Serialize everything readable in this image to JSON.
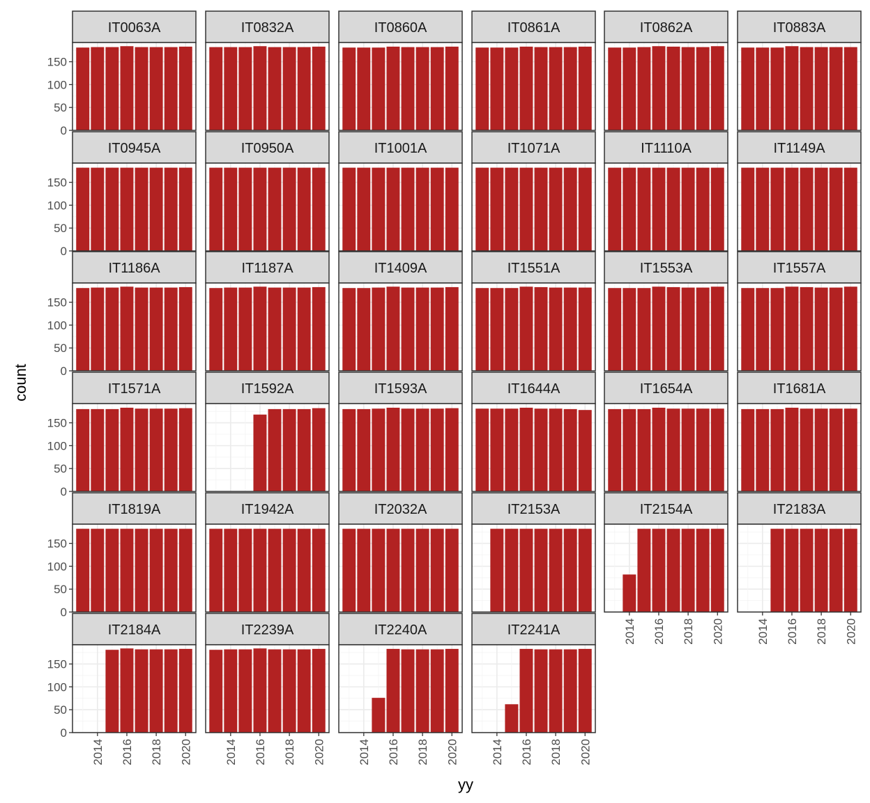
{
  "chart_data": {
    "type": "bar",
    "facet_layout": "6 columns, wrap",
    "xlabel": "yy",
    "ylabel": "count",
    "x_ticks": [
      2014,
      2016,
      2018,
      2020
    ],
    "y_ticks": [
      0,
      50,
      100,
      150
    ],
    "xlim": [
      2012.3,
      2020.7
    ],
    "ylim": [
      0,
      192
    ],
    "bar_color": "#B22222",
    "strip_fill": "#D9D9D9",
    "grid": true,
    "panels": [
      {
        "name": "IT0063A",
        "x": [
          2013,
          2014,
          2015,
          2016,
          2017,
          2018,
          2019,
          2020
        ],
        "values": [
          181,
          182,
          182,
          184,
          182,
          182,
          182,
          183
        ]
      },
      {
        "name": "IT0832A",
        "x": [
          2013,
          2014,
          2015,
          2016,
          2017,
          2018,
          2019,
          2020
        ],
        "values": [
          182,
          182,
          182,
          184,
          182,
          182,
          182,
          183
        ]
      },
      {
        "name": "IT0860A",
        "x": [
          2013,
          2014,
          2015,
          2016,
          2017,
          2018,
          2019,
          2020
        ],
        "values": [
          181,
          181,
          181,
          183,
          182,
          182,
          182,
          183
        ]
      },
      {
        "name": "IT0861A",
        "x": [
          2013,
          2014,
          2015,
          2016,
          2017,
          2018,
          2019,
          2020
        ],
        "values": [
          181,
          181,
          181,
          183,
          182,
          182,
          182,
          183
        ]
      },
      {
        "name": "IT0862A",
        "x": [
          2013,
          2014,
          2015,
          2016,
          2017,
          2018,
          2019,
          2020
        ],
        "values": [
          181,
          181,
          182,
          184,
          183,
          182,
          182,
          184
        ]
      },
      {
        "name": "IT0883A",
        "x": [
          2013,
          2014,
          2015,
          2016,
          2017,
          2018,
          2019,
          2020
        ],
        "values": [
          181,
          181,
          181,
          184,
          182,
          182,
          182,
          182
        ]
      },
      {
        "name": "IT0945A",
        "x": [
          2013,
          2014,
          2015,
          2016,
          2017,
          2018,
          2019,
          2020
        ],
        "values": [
          182,
          182,
          182,
          182,
          182,
          182,
          182,
          182
        ]
      },
      {
        "name": "IT0950A",
        "x": [
          2013,
          2014,
          2015,
          2016,
          2017,
          2018,
          2019,
          2020
        ],
        "values": [
          182,
          182,
          182,
          182,
          182,
          182,
          182,
          182
        ]
      },
      {
        "name": "IT1001A",
        "x": [
          2013,
          2014,
          2015,
          2016,
          2017,
          2018,
          2019,
          2020
        ],
        "values": [
          182,
          182,
          182,
          182,
          182,
          182,
          182,
          182
        ]
      },
      {
        "name": "IT1071A",
        "x": [
          2013,
          2014,
          2015,
          2016,
          2017,
          2018,
          2019,
          2020
        ],
        "values": [
          182,
          182,
          182,
          182,
          182,
          182,
          182,
          182
        ]
      },
      {
        "name": "IT1110A",
        "x": [
          2013,
          2014,
          2015,
          2016,
          2017,
          2018,
          2019,
          2020
        ],
        "values": [
          182,
          182,
          182,
          182,
          182,
          182,
          182,
          182
        ]
      },
      {
        "name": "IT1149A",
        "x": [
          2013,
          2014,
          2015,
          2016,
          2017,
          2018,
          2019,
          2020
        ],
        "values": [
          182,
          182,
          182,
          182,
          182,
          182,
          182,
          182
        ]
      },
      {
        "name": "IT1186A",
        "x": [
          2013,
          2014,
          2015,
          2016,
          2017,
          2018,
          2019,
          2020
        ],
        "values": [
          181,
          182,
          182,
          184,
          182,
          182,
          182,
          183
        ]
      },
      {
        "name": "IT1187A",
        "x": [
          2013,
          2014,
          2015,
          2016,
          2017,
          2018,
          2019,
          2020
        ],
        "values": [
          181,
          182,
          182,
          184,
          182,
          182,
          182,
          183
        ]
      },
      {
        "name": "IT1409A",
        "x": [
          2013,
          2014,
          2015,
          2016,
          2017,
          2018,
          2019,
          2020
        ],
        "values": [
          181,
          181,
          182,
          184,
          182,
          182,
          182,
          183
        ]
      },
      {
        "name": "IT1551A",
        "x": [
          2013,
          2014,
          2015,
          2016,
          2017,
          2018,
          2019,
          2020
        ],
        "values": [
          181,
          181,
          181,
          184,
          183,
          182,
          182,
          182
        ]
      },
      {
        "name": "IT1553A",
        "x": [
          2013,
          2014,
          2015,
          2016,
          2017,
          2018,
          2019,
          2020
        ],
        "values": [
          181,
          181,
          181,
          184,
          183,
          182,
          182,
          184
        ]
      },
      {
        "name": "IT1557A",
        "x": [
          2013,
          2014,
          2015,
          2016,
          2017,
          2018,
          2019,
          2020
        ],
        "values": [
          181,
          181,
          181,
          184,
          183,
          182,
          182,
          184
        ]
      },
      {
        "name": "IT1571A",
        "x": [
          2013,
          2014,
          2015,
          2016,
          2017,
          2018,
          2019,
          2020
        ],
        "values": [
          180,
          180,
          180,
          183,
          181,
          181,
          181,
          182
        ]
      },
      {
        "name": "IT1592A",
        "x": [
          2016,
          2017,
          2018,
          2019,
          2020
        ],
        "values": [
          168,
          180,
          180,
          180,
          182
        ]
      },
      {
        "name": "IT1593A",
        "x": [
          2013,
          2014,
          2015,
          2016,
          2017,
          2018,
          2019,
          2020
        ],
        "values": [
          180,
          180,
          181,
          183,
          181,
          181,
          181,
          182
        ]
      },
      {
        "name": "IT1644A",
        "x": [
          2013,
          2014,
          2015,
          2016,
          2017,
          2018,
          2019,
          2020
        ],
        "values": [
          181,
          181,
          181,
          183,
          181,
          181,
          180,
          178
        ]
      },
      {
        "name": "IT1654A",
        "x": [
          2013,
          2014,
          2015,
          2016,
          2017,
          2018,
          2019,
          2020
        ],
        "values": [
          180,
          180,
          180,
          183,
          181,
          181,
          181,
          181
        ]
      },
      {
        "name": "IT1681A",
        "x": [
          2013,
          2014,
          2015,
          2016,
          2017,
          2018,
          2019,
          2020
        ],
        "values": [
          180,
          180,
          180,
          183,
          181,
          181,
          181,
          181
        ]
      },
      {
        "name": "IT1819A",
        "x": [
          2013,
          2014,
          2015,
          2016,
          2017,
          2018,
          2019,
          2020
        ],
        "values": [
          182,
          182,
          182,
          182,
          182,
          182,
          182,
          182
        ]
      },
      {
        "name": "IT1942A",
        "x": [
          2013,
          2014,
          2015,
          2016,
          2017,
          2018,
          2019,
          2020
        ],
        "values": [
          182,
          182,
          182,
          182,
          182,
          182,
          182,
          182
        ]
      },
      {
        "name": "IT2032A",
        "x": [
          2013,
          2014,
          2015,
          2016,
          2017,
          2018,
          2019,
          2020
        ],
        "values": [
          182,
          182,
          182,
          182,
          182,
          182,
          182,
          182
        ]
      },
      {
        "name": "IT2153A",
        "x": [
          2014,
          2015,
          2016,
          2017,
          2018,
          2019,
          2020
        ],
        "values": [
          182,
          182,
          182,
          182,
          182,
          182,
          182
        ]
      },
      {
        "name": "IT2154A",
        "x": [
          2014,
          2015,
          2016,
          2017,
          2018,
          2019,
          2020
        ],
        "values": [
          82,
          182,
          182,
          182,
          182,
          182,
          182
        ]
      },
      {
        "name": "IT2183A",
        "x": [
          2015,
          2016,
          2017,
          2018,
          2019,
          2020
        ],
        "values": [
          182,
          182,
          182,
          182,
          182,
          182
        ]
      },
      {
        "name": "IT2184A",
        "x": [
          2015,
          2016,
          2017,
          2018,
          2019,
          2020
        ],
        "values": [
          181,
          184,
          182,
          182,
          182,
          183
        ]
      },
      {
        "name": "IT2239A",
        "x": [
          2013,
          2014,
          2015,
          2016,
          2017,
          2018,
          2019,
          2020
        ],
        "values": [
          181,
          182,
          182,
          184,
          182,
          182,
          182,
          183
        ]
      },
      {
        "name": "IT2240A",
        "x": [
          2015,
          2016,
          2017,
          2018,
          2019,
          2020
        ],
        "values": [
          76,
          183,
          182,
          182,
          182,
          183
        ]
      },
      {
        "name": "IT2241A",
        "x": [
          2015,
          2016,
          2017,
          2018,
          2019,
          2020
        ],
        "values": [
          62,
          183,
          182,
          182,
          182,
          183
        ]
      }
    ]
  }
}
